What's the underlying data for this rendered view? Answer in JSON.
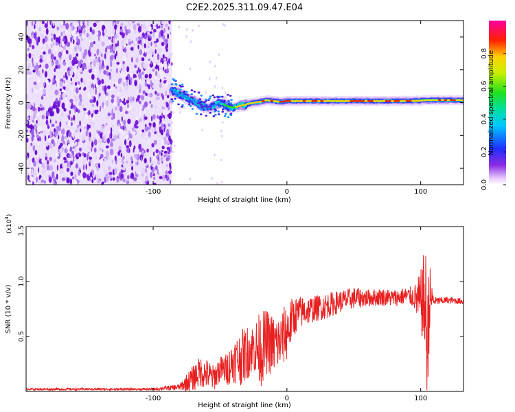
{
  "title": "C2E2.2025.311.09.47.E04",
  "colors": {
    "snr_line": "#e82020",
    "frame": "#000000",
    "scatter": "#7b1fe0",
    "ridge_core": "#ff1a00",
    "ridge_mid": "#00e0c0"
  },
  "chart_data": [
    {
      "type": "heatmap",
      "name": "spectrogram",
      "xlabel": "Height of straight line (km)",
      "ylabel": "Frequency (Hz)",
      "xlim": [
        -195,
        132
      ],
      "ylim": [
        -50,
        50
      ],
      "xticks": [
        -100,
        0,
        100
      ],
      "yticks": [
        -40,
        -20,
        0,
        20,
        40
      ],
      "grid": false,
      "colorbar": {
        "label": "Normalized spectral amplitude",
        "range": [
          0.0,
          1.0
        ],
        "ticks": [
          0.0,
          0.2,
          0.4,
          0.6,
          0.8
        ],
        "tick_labels": [
          "0.0",
          "0.2",
          "0.4",
          "0.6",
          "0.8"
        ],
        "colormap": "rainbow (white-violet-blue-cyan-green-yellow-red-magenta)"
      },
      "noise_region_x": [
        -195,
        -86
      ],
      "ridge": {
        "x": [
          -86,
          -80,
          -70,
          -60,
          -55,
          -50,
          -45,
          -40,
          -35,
          -30,
          -25,
          -20,
          -15,
          -10,
          -5,
          0,
          20,
          40,
          60,
          80,
          100,
          105,
          132
        ],
        "freq": [
          8,
          5,
          1,
          -3,
          -2,
          0,
          -2,
          -3,
          -2,
          -1,
          0,
          0.5,
          1.5,
          1,
          0.5,
          1,
          1,
          1,
          1,
          1,
          1.2,
          1.5,
          1.5
        ],
        "peak_amplitude": [
          0.45,
          0.5,
          0.35,
          0.3,
          0.35,
          0.55,
          0.75,
          0.8,
          0.85,
          0.9,
          0.9,
          0.9,
          0.95,
          0.95,
          0.95,
          0.95,
          0.95,
          0.95,
          0.95,
          0.95,
          0.9,
          0.9,
          0.95
        ]
      }
    },
    {
      "type": "line",
      "name": "snr",
      "xlabel": "Height of straight line (km)",
      "ylabel": "SNR (10 * v/v)",
      "y_multiplier": "(x10",
      "y_multiplier_exp": "4",
      "y_multiplier_close": ")",
      "xlim": [
        -195,
        132
      ],
      "ylim": [
        0,
        1.5
      ],
      "xticks": [
        -100,
        0,
        100
      ],
      "yticks": [
        0.5,
        1.0,
        1.5
      ],
      "ytick_labels": [
        "0.5",
        "1.0",
        "1.5"
      ],
      "grid": false,
      "series": [
        {
          "name": "SNR",
          "x": [
            -195,
            -100,
            -80,
            -75,
            -70,
            -65,
            -60,
            -55,
            -50,
            -45,
            -40,
            -35,
            -30,
            -25,
            -20,
            -15,
            -10,
            -5,
            0,
            5,
            10,
            20,
            30,
            40,
            50,
            60,
            70,
            80,
            90,
            95,
            100,
            102,
            104,
            105,
            106,
            108,
            110,
            120,
            132
          ],
          "base": [
            0.02,
            0.02,
            0.04,
            0.08,
            0.12,
            0.18,
            0.16,
            0.12,
            0.2,
            0.2,
            0.28,
            0.3,
            0.35,
            0.4,
            0.38,
            0.45,
            0.42,
            0.45,
            0.55,
            0.68,
            0.72,
            0.75,
            0.78,
            0.82,
            0.85,
            0.85,
            0.86,
            0.85,
            0.87,
            0.86,
            0.8,
            0.85,
            0.7,
            0.3,
            0.8,
            0.85,
            0.82,
            0.83,
            0.82
          ],
          "amp": [
            0.01,
            0.01,
            0.03,
            0.08,
            0.12,
            0.14,
            0.14,
            0.12,
            0.12,
            0.15,
            0.2,
            0.25,
            0.25,
            0.22,
            0.35,
            0.3,
            0.28,
            0.25,
            0.28,
            0.18,
            0.15,
            0.12,
            0.12,
            0.1,
            0.1,
            0.08,
            0.08,
            0.08,
            0.08,
            0.1,
            0.3,
            0.4,
            0.6,
            0.5,
            0.5,
            0.15,
            0.04,
            0.03,
            0.03
          ]
        }
      ]
    }
  ]
}
